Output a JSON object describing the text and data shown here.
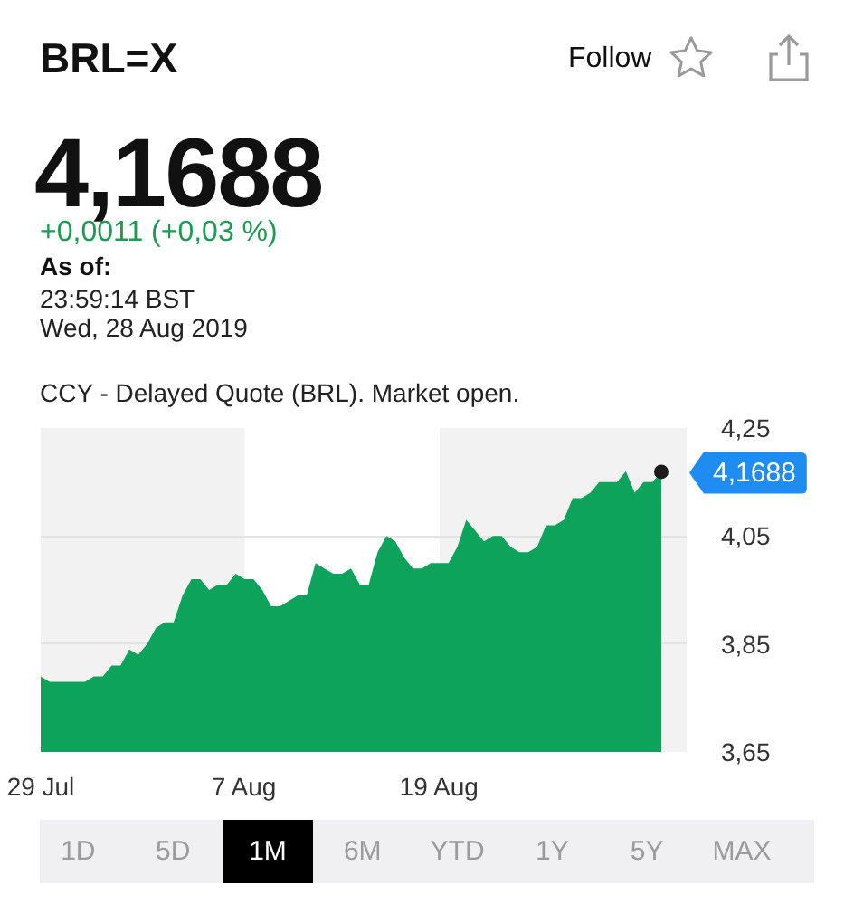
{
  "chart_data": {
    "type": "area",
    "title": "BRL=X",
    "subtitle": "4,1688",
    "annotations": [
      "+0,0011 (+0,03 %)",
      "As of:",
      "23:59:14 BST",
      "Wed, 28 Aug 2019",
      "CCY - Delayed Quote (BRL). Market open.",
      "Follow",
      "1D",
      "5D",
      "1M",
      "6M",
      "YTD",
      "1Y",
      "5Y",
      "MAX",
      "4,1688"
    ],
    "categories": [
      "29 Jul",
      null,
      null,
      null,
      null,
      null,
      null,
      null,
      null,
      null,
      null,
      null,
      null,
      null,
      null,
      null,
      null,
      null,
      null,
      null,
      null,
      null,
      null,
      "7 Aug",
      null,
      null,
      null,
      null,
      null,
      null,
      null,
      null,
      null,
      null,
      null,
      null,
      null,
      null,
      null,
      null,
      null,
      null,
      null,
      null,
      null,
      "19 Aug",
      null,
      null,
      null,
      null,
      null,
      null,
      null,
      null,
      null,
      null,
      null,
      null,
      null,
      null,
      null,
      null,
      null,
      null,
      null,
      null,
      null,
      null,
      null,
      null,
      null
    ],
    "series": [
      {
        "color": "#0ea35a",
        "values": [
          3.79,
          3.78,
          3.78,
          3.78,
          3.78,
          3.78,
          3.79,
          3.79,
          3.81,
          3.81,
          3.84,
          3.83,
          3.85,
          3.88,
          3.89,
          3.89,
          3.94,
          3.97,
          3.97,
          3.95,
          3.96,
          3.96,
          3.98,
          3.97,
          3.97,
          3.95,
          3.92,
          3.92,
          3.93,
          3.94,
          3.94,
          4.0,
          3.99,
          3.98,
          3.98,
          3.99,
          3.96,
          3.96,
          4.02,
          4.05,
          4.04,
          4.01,
          3.99,
          3.99,
          4.0,
          4.0,
          4.0,
          4.03,
          4.08,
          4.06,
          4.04,
          4.05,
          4.05,
          4.03,
          4.02,
          4.02,
          4.03,
          4.07,
          4.07,
          4.08,
          4.12,
          4.12,
          4.13,
          4.15,
          4.15,
          4.15,
          4.17,
          4.13,
          4.15,
          4.15,
          4.1688
        ]
      },
      {
        "type": "scatter",
        "marker": "circle",
        "color": "#1c1c1c",
        "values": [
          null,
          null,
          null,
          null,
          null,
          null,
          null,
          null,
          null,
          null,
          null,
          null,
          null,
          null,
          null,
          null,
          null,
          null,
          null,
          null,
          null,
          null,
          null,
          null,
          null,
          null,
          null,
          null,
          null,
          null,
          null,
          null,
          null,
          null,
          null,
          null,
          null,
          null,
          null,
          null,
          null,
          null,
          null,
          null,
          null,
          null,
          null,
          null,
          null,
          null,
          null,
          null,
          null,
          null,
          null,
          null,
          null,
          null,
          null,
          null,
          null,
          null,
          null,
          null,
          null,
          null,
          null,
          null,
          null,
          null,
          4.1688
        ]
      }
    ],
    "ylim": [
      3.65,
      4.25
    ],
    "yticks": [
      {
        "value": 3.65,
        "label": "3,65"
      },
      {
        "value": 3.85,
        "label": "3,85"
      },
      {
        "value": 4.05,
        "label": "4,05"
      },
      {
        "value": 4.25,
        "label": "4,25"
      }
    ],
    "bands": [
      {
        "axis": "x",
        "from": "7 Aug",
        "to": "19 Aug",
        "color": "#ffffff"
      }
    ],
    "grid": "y"
  }
}
